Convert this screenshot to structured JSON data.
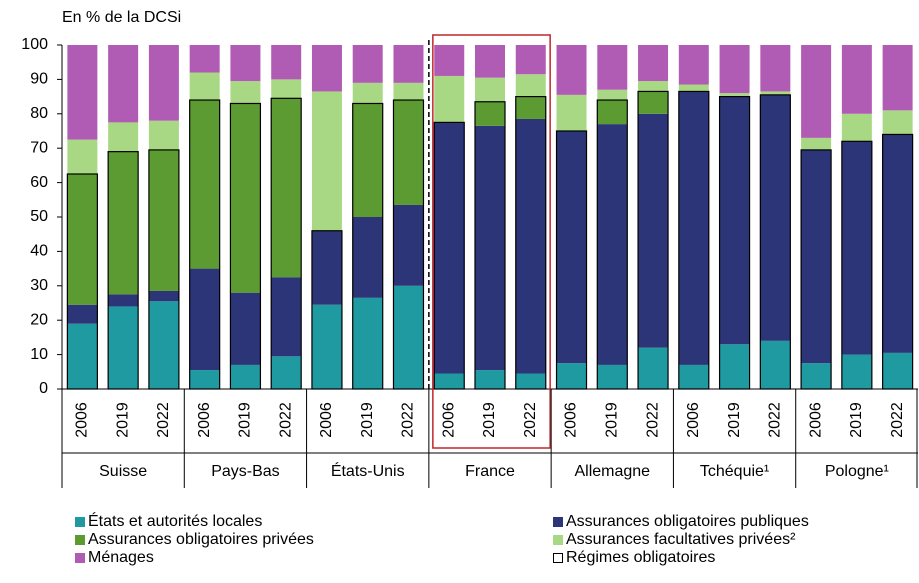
{
  "chart_data": {
    "type": "stacked-bar",
    "ylabel": "En % de la DCSi",
    "groups": [
      {
        "name": "Suisse",
        "years": [
          "2006",
          "2019",
          "2022"
        ]
      },
      {
        "name": "Pays-Bas",
        "years": [
          "2006",
          "2019",
          "2022"
        ]
      },
      {
        "name": "États-Unis",
        "years": [
          "2006",
          "2019",
          "2022"
        ]
      },
      {
        "name": "France",
        "years": [
          "2006",
          "2019",
          "2022"
        ]
      },
      {
        "name": "Allemagne",
        "years": [
          "2006",
          "2019",
          "2022"
        ]
      },
      {
        "name": "Tchéquie¹",
        "years": [
          "2006",
          "2019",
          "2022"
        ]
      },
      {
        "name": "Pologne¹",
        "years": [
          "2006",
          "2019",
          "2022"
        ]
      }
    ],
    "series": [
      {
        "name": "États et autorités locales",
        "color": "#1e9aa0",
        "values": [
          19,
          24,
          25.5,
          5.5,
          7,
          9.5,
          24.5,
          26.5,
          30,
          4.5,
          5.5,
          4.5,
          7.5,
          7,
          12,
          7,
          13,
          14,
          7.5,
          10,
          10.5
        ]
      },
      {
        "name": "Assurances obligatoires publiques",
        "color": "#2c3577",
        "values": [
          5.5,
          3.5,
          3,
          29.5,
          21,
          23,
          21.5,
          23.5,
          23.5,
          73,
          71,
          74,
          67.5,
          70,
          68,
          79.5,
          72,
          71.5,
          62,
          62,
          63.5
        ]
      },
      {
        "name": "Assurances obligatoires privées",
        "color": "#5b9b32",
        "values": [
          38,
          41.5,
          41,
          49,
          55,
          52,
          0,
          33,
          30.5,
          0,
          7,
          6.5,
          0,
          7,
          6.5,
          0,
          0,
          0,
          0,
          0,
          0
        ]
      },
      {
        "name": "Assurances facultatives privées²",
        "color": "#a9d884",
        "values": [
          10,
          8.5,
          8.5,
          8,
          6.5,
          5.5,
          40.5,
          6,
          5,
          13.5,
          7,
          6.5,
          10.5,
          3,
          3,
          2,
          1,
          1,
          3.5,
          8,
          7
        ]
      },
      {
        "name": "Ménages",
        "color": "#b15cb4",
        "values": [
          27.5,
          22.5,
          22,
          8,
          10.5,
          10,
          13.5,
          11,
          11,
          9,
          9.5,
          8.5,
          14.5,
          13,
          10.5,
          11.5,
          14,
          13.5,
          27,
          20,
          19
        ]
      }
    ],
    "outline_legend": "Régimes obligatoires",
    "highlight_group": "France",
    "ylim": [
      0,
      100
    ],
    "yticks": [
      0,
      10,
      20,
      30,
      40,
      50,
      60,
      70,
      80,
      90,
      100
    ]
  }
}
